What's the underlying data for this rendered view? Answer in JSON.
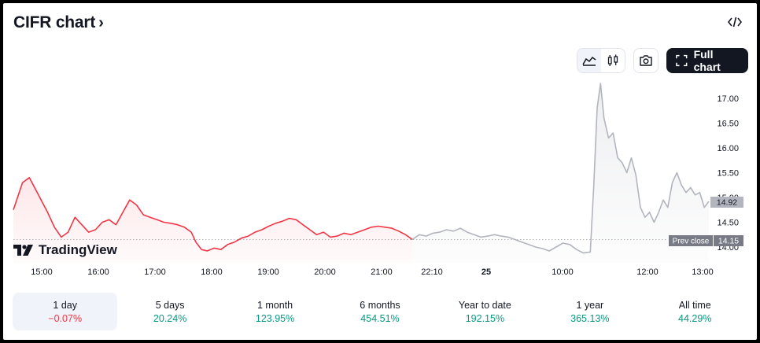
{
  "header": {
    "title": "CIFR chart",
    "chevron": "›",
    "embed_icon": "code-icon"
  },
  "toolbar": {
    "area_icon": "area-chart-icon",
    "candle_icon": "candlestick-icon",
    "camera_icon": "camera-icon",
    "fullchart_label": "Full chart",
    "fullchart_icon": "expand-icon"
  },
  "colors": {
    "down_line": "#f23645",
    "ext_line": "#b2b5be",
    "up_text": "#089981",
    "down_text": "#f23645"
  },
  "chart_data": {
    "type": "area",
    "y_ticks": [
      "17.00",
      "16.50",
      "16.00",
      "15.50",
      "15.00",
      "14.50",
      "14.00"
    ],
    "ylim": [
      13.75,
      17.4
    ],
    "x_ticks": [
      "15:00",
      "16:00",
      "17:00",
      "18:00",
      "19:00",
      "20:00",
      "21:00",
      "22:10",
      "25",
      "10:00",
      "12:00",
      "13:00"
    ],
    "current_price": "14.92",
    "prev_close_label": "Prev close",
    "prev_close": "14.15",
    "session_points": [
      [
        0.0,
        14.75
      ],
      [
        0.8,
        15.3
      ],
      [
        1.4,
        15.4
      ],
      [
        2.2,
        15.05
      ],
      [
        3.0,
        14.7
      ],
      [
        3.6,
        14.4
      ],
      [
        4.2,
        14.2
      ],
      [
        4.8,
        14.3
      ],
      [
        5.4,
        14.6
      ],
      [
        6.0,
        14.45
      ],
      [
        6.6,
        14.3
      ],
      [
        7.2,
        14.35
      ],
      [
        7.8,
        14.5
      ],
      [
        8.4,
        14.55
      ],
      [
        9.0,
        14.45
      ],
      [
        9.6,
        14.7
      ],
      [
        10.2,
        14.95
      ],
      [
        10.8,
        14.85
      ],
      [
        11.4,
        14.65
      ],
      [
        12.0,
        14.6
      ],
      [
        12.6,
        14.55
      ],
      [
        13.2,
        14.5
      ],
      [
        13.8,
        14.48
      ],
      [
        14.4,
        14.45
      ],
      [
        15.0,
        14.4
      ],
      [
        15.6,
        14.3
      ],
      [
        16.0,
        14.1
      ],
      [
        16.5,
        13.95
      ],
      [
        17.0,
        13.92
      ],
      [
        17.6,
        13.98
      ],
      [
        18.2,
        13.95
      ],
      [
        18.8,
        14.05
      ],
      [
        19.4,
        14.1
      ],
      [
        20.0,
        14.18
      ],
      [
        20.6,
        14.22
      ],
      [
        21.2,
        14.3
      ],
      [
        21.8,
        14.35
      ],
      [
        22.4,
        14.42
      ],
      [
        23.0,
        14.48
      ],
      [
        23.6,
        14.52
      ],
      [
        24.2,
        14.58
      ],
      [
        24.8,
        14.55
      ],
      [
        25.4,
        14.45
      ],
      [
        26.0,
        14.35
      ],
      [
        26.6,
        14.25
      ],
      [
        27.2,
        14.3
      ],
      [
        27.8,
        14.2
      ],
      [
        28.4,
        14.22
      ],
      [
        29.0,
        14.28
      ],
      [
        29.6,
        14.25
      ],
      [
        30.2,
        14.3
      ],
      [
        30.8,
        14.35
      ],
      [
        31.4,
        14.4
      ],
      [
        32.0,
        14.42
      ],
      [
        32.6,
        14.4
      ],
      [
        33.2,
        14.38
      ],
      [
        33.8,
        14.32
      ],
      [
        34.4,
        14.25
      ],
      [
        35.0,
        14.15
      ]
    ],
    "extended_points": [
      [
        35.0,
        14.15
      ],
      [
        35.6,
        14.25
      ],
      [
        36.2,
        14.22
      ],
      [
        36.8,
        14.28
      ],
      [
        37.4,
        14.3
      ],
      [
        38.0,
        14.35
      ],
      [
        38.6,
        14.32
      ],
      [
        39.2,
        14.38
      ],
      [
        39.8,
        14.3
      ],
      [
        40.4,
        14.25
      ],
      [
        41.0,
        14.2
      ],
      [
        41.6,
        14.22
      ],
      [
        42.2,
        14.25
      ],
      [
        42.8,
        14.22
      ],
      [
        43.4,
        14.2
      ],
      [
        44.0,
        14.15
      ],
      [
        44.6,
        14.1
      ],
      [
        45.2,
        14.05
      ],
      [
        45.8,
        14.0
      ],
      [
        46.4,
        13.97
      ],
      [
        47.0,
        13.92
      ],
      [
        47.6,
        14.0
      ],
      [
        48.2,
        14.08
      ],
      [
        48.8,
        14.05
      ],
      [
        49.4,
        13.95
      ],
      [
        50.0,
        13.88
      ],
      [
        50.6,
        13.9
      ],
      [
        50.9,
        15.2
      ],
      [
        51.2,
        16.8
      ],
      [
        51.5,
        17.3
      ],
      [
        51.8,
        16.6
      ],
      [
        52.2,
        16.2
      ],
      [
        52.6,
        16.3
      ],
      [
        53.0,
        15.8
      ],
      [
        53.4,
        15.7
      ],
      [
        53.8,
        15.5
      ],
      [
        54.2,
        15.8
      ],
      [
        54.6,
        15.45
      ],
      [
        55.0,
        14.8
      ],
      [
        55.4,
        14.6
      ],
      [
        55.8,
        14.7
      ],
      [
        56.2,
        14.5
      ],
      [
        56.6,
        14.7
      ],
      [
        57.0,
        14.95
      ],
      [
        57.4,
        14.8
      ],
      [
        57.8,
        15.3
      ],
      [
        58.2,
        15.5
      ],
      [
        58.6,
        15.25
      ],
      [
        59.0,
        15.1
      ],
      [
        59.4,
        15.2
      ],
      [
        59.8,
        15.05
      ],
      [
        60.2,
        15.1
      ],
      [
        60.6,
        14.8
      ],
      [
        61.0,
        14.92
      ]
    ]
  },
  "logo": {
    "icon": "tradingview-logo-icon",
    "text": "TradingView"
  },
  "periods": [
    {
      "label": "1 day",
      "value": "−0.07%",
      "dir": "down",
      "active": true
    },
    {
      "label": "5 days",
      "value": "20.24%",
      "dir": "up",
      "active": false
    },
    {
      "label": "1 month",
      "value": "123.95%",
      "dir": "up",
      "active": false
    },
    {
      "label": "6 months",
      "value": "454.51%",
      "dir": "up",
      "active": false
    },
    {
      "label": "Year to date",
      "value": "192.15%",
      "dir": "up",
      "active": false
    },
    {
      "label": "1 year",
      "value": "365.13%",
      "dir": "up",
      "active": false
    },
    {
      "label": "All time",
      "value": "44.29%",
      "dir": "up",
      "active": false
    }
  ]
}
